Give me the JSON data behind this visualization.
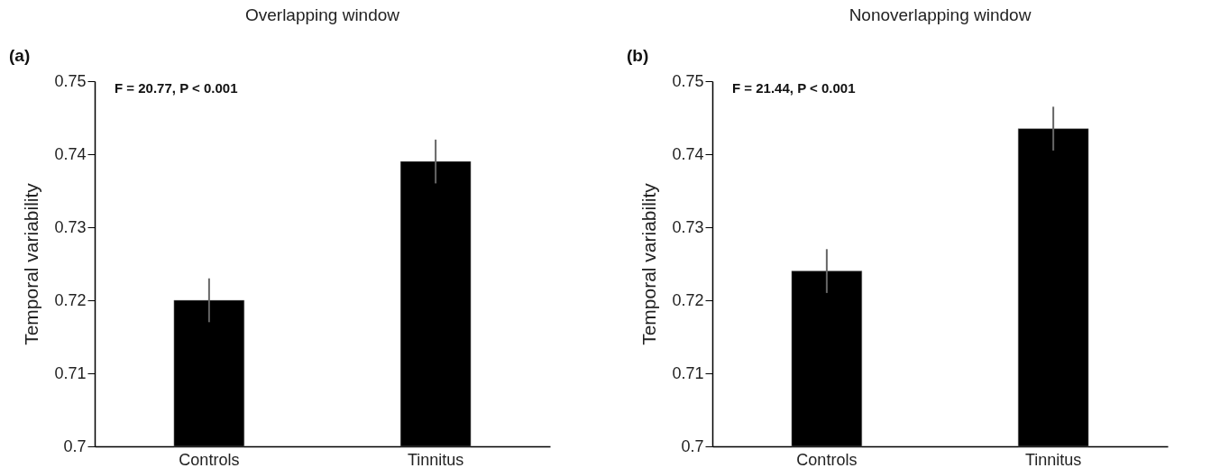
{
  "chart_data": [
    {
      "type": "bar",
      "title": "Overlapping window",
      "ylabel": "Temporal variability",
      "categories": [
        "Controls",
        "Tinnitus"
      ],
      "values": [
        0.72,
        0.739
      ],
      "errors": [
        0.003,
        0.003
      ],
      "color": "#000000",
      "ylim": [
        0.7,
        0.75
      ],
      "yticks": [
        0.7,
        0.71,
        0.72,
        0.73,
        0.74,
        0.75
      ],
      "annotations": [
        "(a)",
        "F = 20.77, P < 0.001"
      ]
    },
    {
      "type": "bar",
      "title": "Nonoverlapping window",
      "ylabel": "Temporal variability",
      "categories": [
        "Controls",
        "Tinnitus"
      ],
      "values": [
        0.724,
        0.7435
      ],
      "errors": [
        0.003,
        0.003
      ],
      "color": "#000000",
      "ylim": [
        0.7,
        0.75
      ],
      "yticks": [
        0.7,
        0.71,
        0.72,
        0.73,
        0.74,
        0.75
      ],
      "annotations": [
        "(b)",
        "F = 21.44, P < 0.001"
      ]
    }
  ]
}
